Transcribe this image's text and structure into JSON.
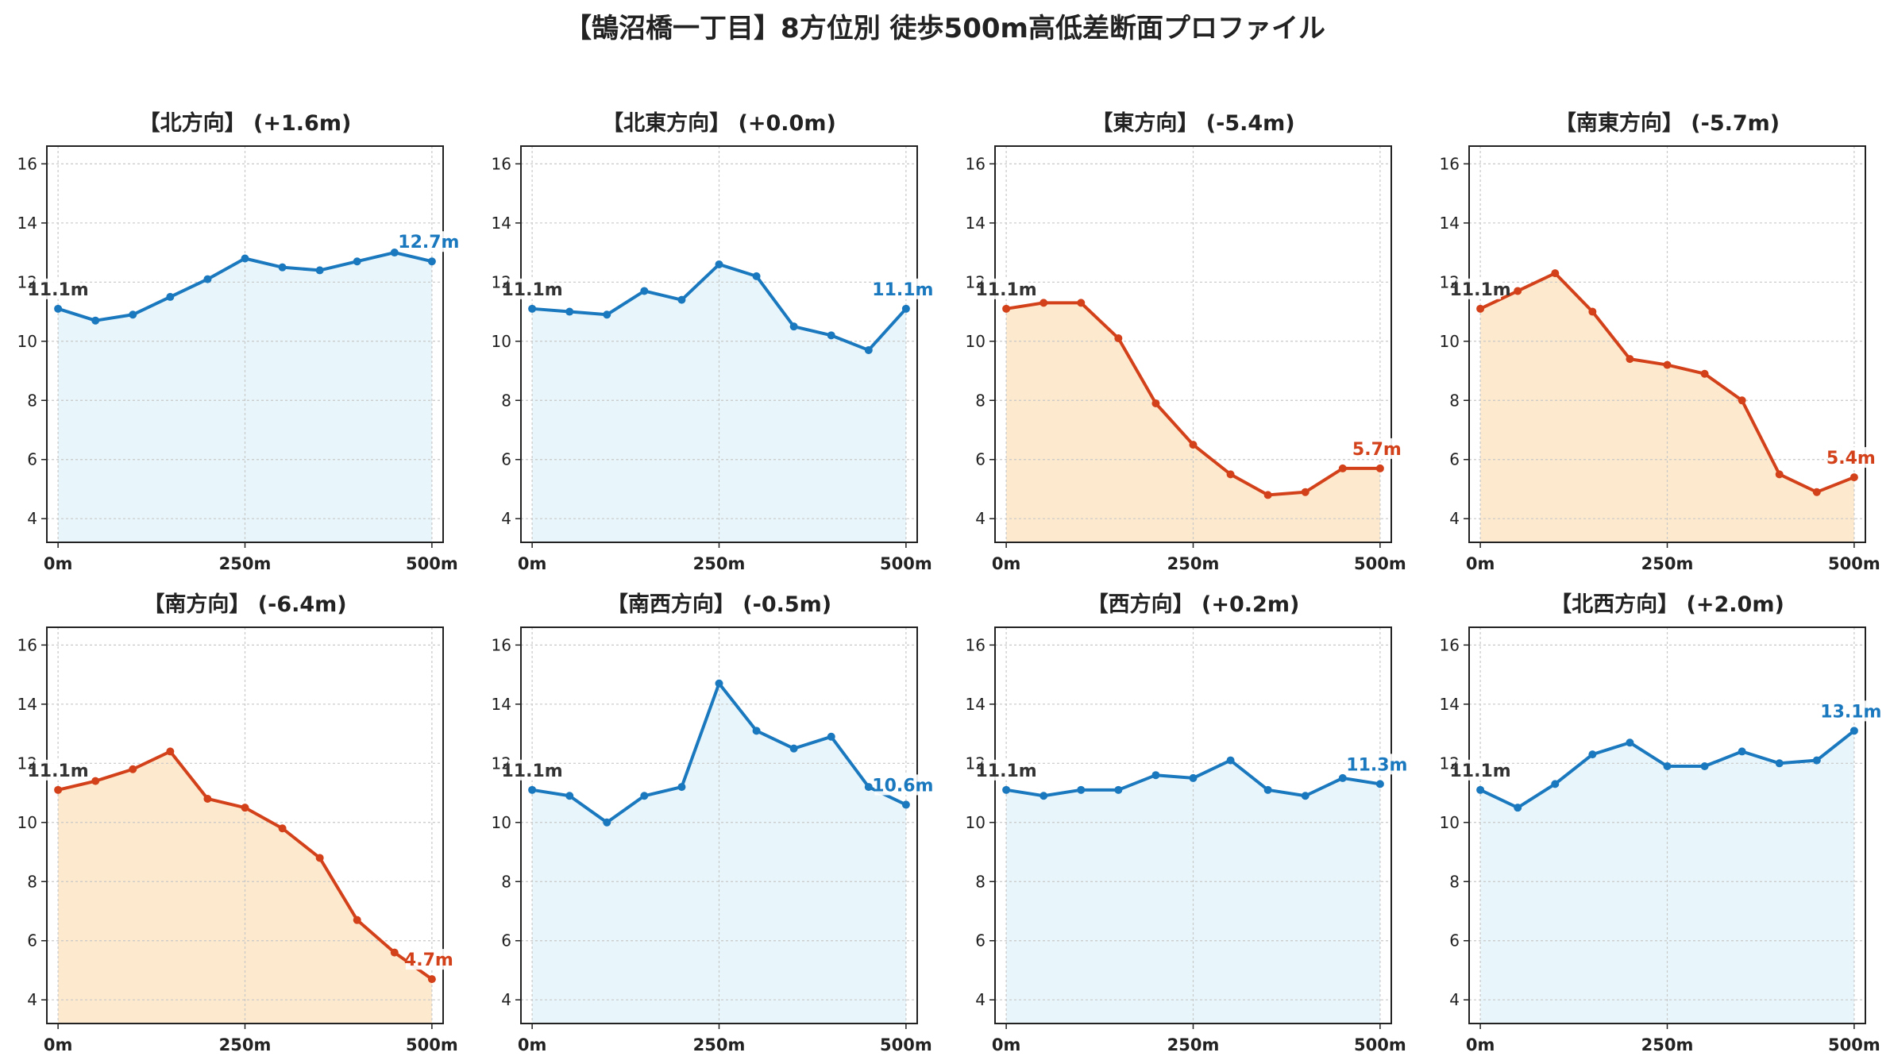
{
  "title": "【鵠沼橋一丁目】8方位別 徒歩500m高低差断面プロファイル",
  "colors": {
    "up": "#1a78be",
    "down": "#d3411a",
    "up_fill": "#e8f6fb",
    "down_fill": "#fde9cd",
    "start_label": "#333333",
    "grid": "#c8c8c8"
  },
  "chart_data": [
    {
      "type": "area",
      "title": "【北方向】 (+1.6m)",
      "trend": "up",
      "x": [
        0,
        50,
        100,
        150,
        200,
        250,
        300,
        350,
        400,
        450,
        500
      ],
      "y": [
        11.1,
        10.7,
        10.9,
        11.5,
        12.1,
        12.8,
        12.5,
        12.4,
        12.7,
        13.0,
        12.7
      ],
      "start_label": "11.1m",
      "end_label": "12.7m"
    },
    {
      "type": "area",
      "title": "【北東方向】 (+0.0m)",
      "trend": "up",
      "x": [
        0,
        50,
        100,
        150,
        200,
        250,
        300,
        350,
        400,
        450,
        500
      ],
      "y": [
        11.1,
        11.0,
        10.9,
        11.7,
        11.4,
        12.6,
        12.2,
        10.5,
        10.2,
        9.7,
        11.1
      ],
      "start_label": "11.1m",
      "end_label": "11.1m"
    },
    {
      "type": "area",
      "title": "【東方向】 (-5.4m)",
      "trend": "down",
      "x": [
        0,
        50,
        100,
        150,
        200,
        250,
        300,
        350,
        400,
        450,
        500
      ],
      "y": [
        11.1,
        11.3,
        11.3,
        10.1,
        7.9,
        6.5,
        5.5,
        4.8,
        4.9,
        5.7,
        5.7
      ],
      "start_label": "11.1m",
      "end_label": "5.7m"
    },
    {
      "type": "area",
      "title": "【南東方向】 (-5.7m)",
      "trend": "down",
      "x": [
        0,
        50,
        100,
        150,
        200,
        250,
        300,
        350,
        400,
        450,
        500
      ],
      "y": [
        11.1,
        11.7,
        12.3,
        11.0,
        9.4,
        9.2,
        8.9,
        8.0,
        5.5,
        4.9,
        5.4
      ],
      "start_label": "11.1m",
      "end_label": "5.4m"
    },
    {
      "type": "area",
      "title": "【南方向】 (-6.4m)",
      "trend": "down",
      "x": [
        0,
        50,
        100,
        150,
        200,
        250,
        300,
        350,
        400,
        450,
        500
      ],
      "y": [
        11.1,
        11.4,
        11.8,
        12.4,
        10.8,
        10.5,
        9.8,
        8.8,
        6.7,
        5.6,
        4.7
      ],
      "start_label": "11.1m",
      "end_label": "4.7m"
    },
    {
      "type": "area",
      "title": "【南西方向】 (-0.5m)",
      "trend": "up",
      "x": [
        0,
        50,
        100,
        150,
        200,
        250,
        300,
        350,
        400,
        450,
        500
      ],
      "y": [
        11.1,
        10.9,
        10.0,
        10.9,
        11.2,
        14.7,
        13.1,
        12.5,
        12.9,
        11.2,
        10.6
      ],
      "start_label": "11.1m",
      "end_label": "10.6m"
    },
    {
      "type": "area",
      "title": "【西方向】 (+0.2m)",
      "trend": "up",
      "x": [
        0,
        50,
        100,
        150,
        200,
        250,
        300,
        350,
        400,
        450,
        500
      ],
      "y": [
        11.1,
        10.9,
        11.1,
        11.1,
        11.6,
        11.5,
        12.1,
        11.1,
        10.9,
        11.5,
        11.3
      ],
      "start_label": "11.1m",
      "end_label": "11.3m"
    },
    {
      "type": "area",
      "title": "【北西方向】 (+2.0m)",
      "trend": "up",
      "x": [
        0,
        50,
        100,
        150,
        200,
        250,
        300,
        350,
        400,
        450,
        500
      ],
      "y": [
        11.1,
        10.5,
        11.3,
        12.3,
        12.7,
        11.9,
        11.9,
        12.4,
        12.0,
        12.1,
        13.1
      ],
      "start_label": "11.1m",
      "end_label": "13.1m"
    }
  ],
  "axes": {
    "xlim": [
      -15,
      515
    ],
    "ylim": [
      3.2,
      16.6
    ],
    "yticks": [
      4,
      6,
      8,
      10,
      12,
      14,
      16
    ],
    "xticks": [
      0,
      250,
      500
    ],
    "xtick_labels": [
      "0m",
      "250m",
      "500m"
    ],
    "grid": true
  }
}
